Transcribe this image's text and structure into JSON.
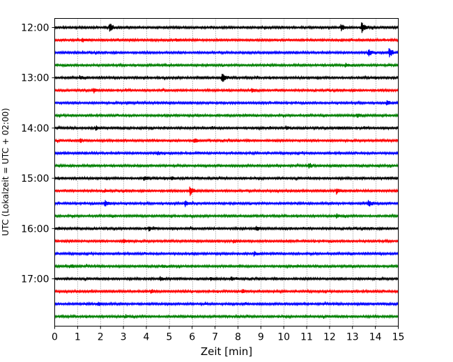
{
  "chart_data": {
    "type": "line",
    "chart_kind": "helicorder (seismogram traces)",
    "xlabel": "Zeit  [min]",
    "ylabel": "UTC (Lokalzeit = UTC + 02:00)",
    "xlim": [
      0,
      15
    ],
    "x_ticks": [
      0,
      1,
      2,
      3,
      4,
      5,
      6,
      7,
      8,
      9,
      10,
      11,
      12,
      13,
      14,
      15
    ],
    "x_tick_labels": [
      "0",
      "1",
      "2",
      "3",
      "4",
      "5",
      "6",
      "7",
      "8",
      "9",
      "10",
      "11",
      "12",
      "13",
      "14",
      "15"
    ],
    "y_tick_labels": [
      "12:00",
      "13:00",
      "14:00",
      "15:00",
      "16:00",
      "17:00"
    ],
    "grid": "vertical dotted lines at each minute",
    "legend": "none",
    "trace_interval_minutes": 15,
    "trace_color_cycle": [
      "#000000",
      "#ff0000",
      "#0000ff",
      "#008000"
    ],
    "traces": [
      {
        "start": "12:00",
        "events": [
          {
            "t": 2.4,
            "amp": 0.9
          },
          {
            "t": 12.5,
            "amp": 0.6
          },
          {
            "t": 13.4,
            "amp": 1.0
          }
        ]
      },
      {
        "start": "12:15",
        "events": [
          {
            "t": 1.2,
            "amp": 0.4
          },
          {
            "t": 5.3,
            "amp": 0.3
          }
        ]
      },
      {
        "start": "12:30",
        "events": [
          {
            "t": 13.7,
            "amp": 0.6
          },
          {
            "t": 14.6,
            "amp": 0.9
          }
        ]
      },
      {
        "start": "12:45",
        "events": [
          {
            "t": 12.7,
            "amp": 0.3
          }
        ]
      },
      {
        "start": "13:00",
        "events": [
          {
            "t": 7.3,
            "amp": 0.9
          },
          {
            "t": 1.1,
            "amp": 0.3
          }
        ]
      },
      {
        "start": "13:15",
        "events": [
          {
            "t": 1.7,
            "amp": 0.4
          },
          {
            "t": 8.6,
            "amp": 0.35
          }
        ]
      },
      {
        "start": "13:30",
        "events": [
          {
            "t": 14.5,
            "amp": 0.4
          },
          {
            "t": 3.2,
            "amp": 0.25
          }
        ]
      },
      {
        "start": "13:45",
        "events": [
          {
            "t": 13.2,
            "amp": 0.4
          }
        ]
      },
      {
        "start": "14:00",
        "events": [
          {
            "t": 1.8,
            "amp": 0.25
          },
          {
            "t": 10.1,
            "amp": 0.3
          },
          {
            "t": 12.4,
            "amp": 0.25
          }
        ]
      },
      {
        "start": "14:15",
        "events": [
          {
            "t": 1.1,
            "amp": 0.35
          },
          {
            "t": 6.1,
            "amp": 0.4
          }
        ]
      },
      {
        "start": "14:30",
        "events": [
          {
            "t": 4.5,
            "amp": 0.25
          }
        ]
      },
      {
        "start": "14:45",
        "events": [
          {
            "t": 11.1,
            "amp": 0.4
          }
        ]
      },
      {
        "start": "15:00",
        "events": [
          {
            "t": 3.9,
            "amp": 0.45
          },
          {
            "t": 5.1,
            "amp": 0.3
          }
        ]
      },
      {
        "start": "15:15",
        "events": [
          {
            "t": 5.9,
            "amp": 1.0
          },
          {
            "t": 12.3,
            "amp": 0.55
          },
          {
            "t": 2.2,
            "amp": 0.25
          }
        ]
      },
      {
        "start": "15:30",
        "events": [
          {
            "t": 2.2,
            "amp": 0.6
          },
          {
            "t": 5.7,
            "amp": 0.5
          },
          {
            "t": 13.7,
            "amp": 0.6
          }
        ]
      },
      {
        "start": "15:45",
        "events": [
          {
            "t": 12.3,
            "amp": 0.35
          }
        ]
      },
      {
        "start": "16:00",
        "events": [
          {
            "t": 4.1,
            "amp": 0.35
          },
          {
            "t": 8.8,
            "amp": 0.3
          }
        ]
      },
      {
        "start": "16:15",
        "events": [
          {
            "t": 3.0,
            "amp": 0.35
          },
          {
            "t": 7.8,
            "amp": 0.3
          }
        ]
      },
      {
        "start": "16:30",
        "events": [
          {
            "t": 8.7,
            "amp": 0.35
          }
        ]
      },
      {
        "start": "16:45",
        "events": [
          {
            "t": 0.7,
            "amp": 0.3
          },
          {
            "t": 4.7,
            "amp": 0.3
          }
        ]
      },
      {
        "start": "17:00",
        "events": [
          {
            "t": 4.6,
            "amp": 0.35
          },
          {
            "t": 6.8,
            "amp": 0.35
          },
          {
            "t": 7.7,
            "amp": 0.4
          }
        ]
      },
      {
        "start": "17:15",
        "events": [
          {
            "t": 4.2,
            "amp": 0.35
          },
          {
            "t": 8.2,
            "amp": 0.3
          }
        ]
      },
      {
        "start": "17:30",
        "events": [
          {
            "t": 1.9,
            "amp": 0.3
          }
        ]
      },
      {
        "start": "17:45",
        "events": [
          {
            "t": 3.1,
            "amp": 0.25
          }
        ]
      }
    ]
  }
}
